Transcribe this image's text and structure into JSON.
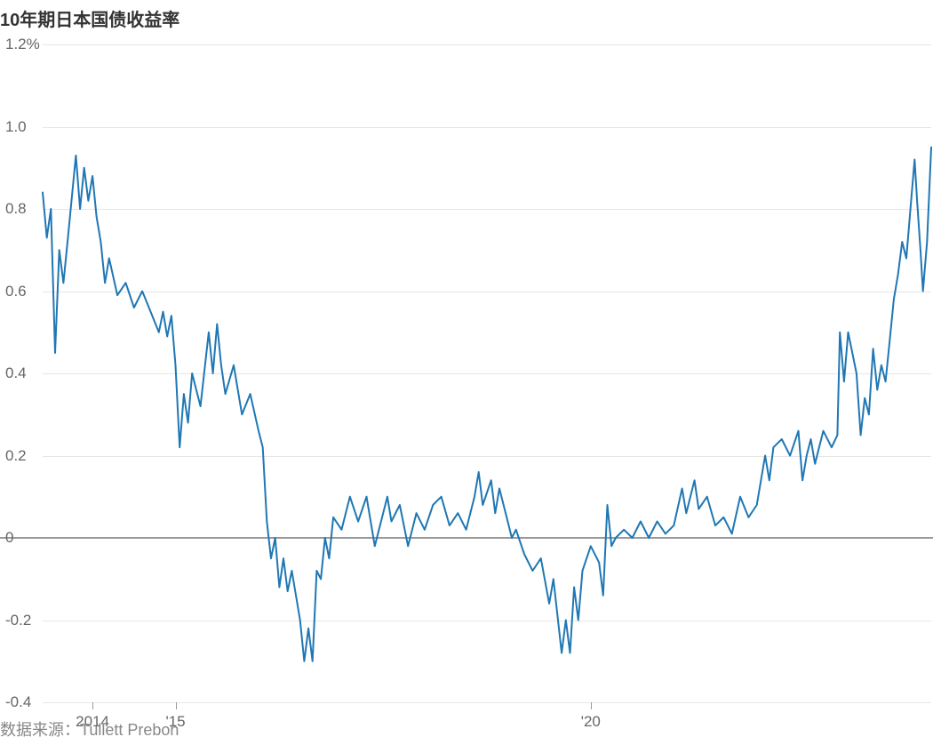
{
  "title": "10年期日本国债收益率",
  "source": "数据来源：Tullett Prebon",
  "chart": {
    "type": "line",
    "line_color": "#1f77b4",
    "line_width": 2,
    "background_color": "#ffffff",
    "grid_color": "#e6e6e6",
    "zero_line_color": "#999999",
    "title_fontsize": 20,
    "title_weight": 700,
    "label_fontsize": 17,
    "label_color": "#666666",
    "source_fontsize": 18,
    "source_color": "#888888",
    "y": {
      "min": -0.4,
      "max": 1.2,
      "ticks": [
        -0.4,
        -0.2,
        0,
        0.2,
        0.4,
        0.6,
        0.8,
        1.0,
        1.2
      ],
      "tick_labels": [
        "-0.4",
        "-0.2",
        "0",
        "0.2",
        "0.4",
        "0.6",
        "0.8",
        "1.0",
        "1.2%"
      ]
    },
    "x": {
      "min": 2013.4,
      "max": 2024.1,
      "ticks": [
        2014,
        2015,
        2020
      ],
      "tick_labels": [
        "2014",
        "'15",
        "'20"
      ]
    },
    "series": [
      {
        "x": 2013.4,
        "y": 0.84
      },
      {
        "x": 2013.45,
        "y": 0.73
      },
      {
        "x": 2013.5,
        "y": 0.8
      },
      {
        "x": 2013.55,
        "y": 0.45
      },
      {
        "x": 2013.6,
        "y": 0.7
      },
      {
        "x": 2013.65,
        "y": 0.62
      },
      {
        "x": 2013.7,
        "y": 0.72
      },
      {
        "x": 2013.8,
        "y": 0.93
      },
      {
        "x": 2013.85,
        "y": 0.8
      },
      {
        "x": 2013.9,
        "y": 0.9
      },
      {
        "x": 2013.95,
        "y": 0.82
      },
      {
        "x": 2014.0,
        "y": 0.88
      },
      {
        "x": 2014.05,
        "y": 0.78
      },
      {
        "x": 2014.1,
        "y": 0.72
      },
      {
        "x": 2014.15,
        "y": 0.62
      },
      {
        "x": 2014.2,
        "y": 0.68
      },
      {
        "x": 2014.3,
        "y": 0.59
      },
      {
        "x": 2014.4,
        "y": 0.62
      },
      {
        "x": 2014.5,
        "y": 0.56
      },
      {
        "x": 2014.6,
        "y": 0.6
      },
      {
        "x": 2014.7,
        "y": 0.55
      },
      {
        "x": 2014.8,
        "y": 0.5
      },
      {
        "x": 2014.85,
        "y": 0.55
      },
      {
        "x": 2014.9,
        "y": 0.49
      },
      {
        "x": 2014.95,
        "y": 0.54
      },
      {
        "x": 2015.0,
        "y": 0.42
      },
      {
        "x": 2015.05,
        "y": 0.22
      },
      {
        "x": 2015.1,
        "y": 0.35
      },
      {
        "x": 2015.15,
        "y": 0.28
      },
      {
        "x": 2015.2,
        "y": 0.4
      },
      {
        "x": 2015.3,
        "y": 0.32
      },
      {
        "x": 2015.4,
        "y": 0.5
      },
      {
        "x": 2015.45,
        "y": 0.4
      },
      {
        "x": 2015.5,
        "y": 0.52
      },
      {
        "x": 2015.55,
        "y": 0.42
      },
      {
        "x": 2015.6,
        "y": 0.35
      },
      {
        "x": 2015.7,
        "y": 0.42
      },
      {
        "x": 2015.8,
        "y": 0.3
      },
      {
        "x": 2015.9,
        "y": 0.35
      },
      {
        "x": 2016.0,
        "y": 0.26
      },
      {
        "x": 2016.05,
        "y": 0.22
      },
      {
        "x": 2016.1,
        "y": 0.04
      },
      {
        "x": 2016.15,
        "y": -0.05
      },
      {
        "x": 2016.2,
        "y": 0.0
      },
      {
        "x": 2016.25,
        "y": -0.12
      },
      {
        "x": 2016.3,
        "y": -0.05
      },
      {
        "x": 2016.35,
        "y": -0.13
      },
      {
        "x": 2016.4,
        "y": -0.08
      },
      {
        "x": 2016.5,
        "y": -0.2
      },
      {
        "x": 2016.55,
        "y": -0.3
      },
      {
        "x": 2016.6,
        "y": -0.22
      },
      {
        "x": 2016.65,
        "y": -0.3
      },
      {
        "x": 2016.7,
        "y": -0.08
      },
      {
        "x": 2016.75,
        "y": -0.1
      },
      {
        "x": 2016.8,
        "y": 0.0
      },
      {
        "x": 2016.85,
        "y": -0.05
      },
      {
        "x": 2016.9,
        "y": 0.05
      },
      {
        "x": 2017.0,
        "y": 0.02
      },
      {
        "x": 2017.1,
        "y": 0.1
      },
      {
        "x": 2017.2,
        "y": 0.04
      },
      {
        "x": 2017.3,
        "y": 0.1
      },
      {
        "x": 2017.4,
        "y": -0.02
      },
      {
        "x": 2017.5,
        "y": 0.06
      },
      {
        "x": 2017.55,
        "y": 0.1
      },
      {
        "x": 2017.6,
        "y": 0.04
      },
      {
        "x": 2017.7,
        "y": 0.08
      },
      {
        "x": 2017.8,
        "y": -0.02
      },
      {
        "x": 2017.9,
        "y": 0.06
      },
      {
        "x": 2018.0,
        "y": 0.02
      },
      {
        "x": 2018.1,
        "y": 0.08
      },
      {
        "x": 2018.2,
        "y": 0.1
      },
      {
        "x": 2018.3,
        "y": 0.03
      },
      {
        "x": 2018.4,
        "y": 0.06
      },
      {
        "x": 2018.5,
        "y": 0.02
      },
      {
        "x": 2018.6,
        "y": 0.1
      },
      {
        "x": 2018.65,
        "y": 0.16
      },
      {
        "x": 2018.7,
        "y": 0.08
      },
      {
        "x": 2018.8,
        "y": 0.14
      },
      {
        "x": 2018.85,
        "y": 0.06
      },
      {
        "x": 2018.9,
        "y": 0.12
      },
      {
        "x": 2019.0,
        "y": 0.04
      },
      {
        "x": 2019.05,
        "y": 0.0
      },
      {
        "x": 2019.1,
        "y": 0.02
      },
      {
        "x": 2019.2,
        "y": -0.04
      },
      {
        "x": 2019.3,
        "y": -0.08
      },
      {
        "x": 2019.4,
        "y": -0.05
      },
      {
        "x": 2019.5,
        "y": -0.16
      },
      {
        "x": 2019.55,
        "y": -0.1
      },
      {
        "x": 2019.65,
        "y": -0.28
      },
      {
        "x": 2019.7,
        "y": -0.2
      },
      {
        "x": 2019.75,
        "y": -0.28
      },
      {
        "x": 2019.8,
        "y": -0.12
      },
      {
        "x": 2019.85,
        "y": -0.2
      },
      {
        "x": 2019.9,
        "y": -0.08
      },
      {
        "x": 2020.0,
        "y": -0.02
      },
      {
        "x": 2020.1,
        "y": -0.06
      },
      {
        "x": 2020.15,
        "y": -0.14
      },
      {
        "x": 2020.2,
        "y": 0.08
      },
      {
        "x": 2020.25,
        "y": -0.02
      },
      {
        "x": 2020.3,
        "y": 0.0
      },
      {
        "x": 2020.4,
        "y": 0.02
      },
      {
        "x": 2020.5,
        "y": 0.0
      },
      {
        "x": 2020.6,
        "y": 0.04
      },
      {
        "x": 2020.7,
        "y": 0.0
      },
      {
        "x": 2020.8,
        "y": 0.04
      },
      {
        "x": 2020.9,
        "y": 0.01
      },
      {
        "x": 2021.0,
        "y": 0.03
      },
      {
        "x": 2021.1,
        "y": 0.12
      },
      {
        "x": 2021.15,
        "y": 0.06
      },
      {
        "x": 2021.25,
        "y": 0.14
      },
      {
        "x": 2021.3,
        "y": 0.07
      },
      {
        "x": 2021.4,
        "y": 0.1
      },
      {
        "x": 2021.5,
        "y": 0.03
      },
      {
        "x": 2021.6,
        "y": 0.05
      },
      {
        "x": 2021.7,
        "y": 0.01
      },
      {
        "x": 2021.8,
        "y": 0.1
      },
      {
        "x": 2021.9,
        "y": 0.05
      },
      {
        "x": 2022.0,
        "y": 0.08
      },
      {
        "x": 2022.1,
        "y": 0.2
      },
      {
        "x": 2022.15,
        "y": 0.14
      },
      {
        "x": 2022.2,
        "y": 0.22
      },
      {
        "x": 2022.3,
        "y": 0.24
      },
      {
        "x": 2022.4,
        "y": 0.2
      },
      {
        "x": 2022.5,
        "y": 0.26
      },
      {
        "x": 2022.55,
        "y": 0.14
      },
      {
        "x": 2022.6,
        "y": 0.2
      },
      {
        "x": 2022.65,
        "y": 0.24
      },
      {
        "x": 2022.7,
        "y": 0.18
      },
      {
        "x": 2022.8,
        "y": 0.26
      },
      {
        "x": 2022.9,
        "y": 0.22
      },
      {
        "x": 2022.97,
        "y": 0.25
      },
      {
        "x": 2023.0,
        "y": 0.5
      },
      {
        "x": 2023.05,
        "y": 0.38
      },
      {
        "x": 2023.1,
        "y": 0.5
      },
      {
        "x": 2023.2,
        "y": 0.4
      },
      {
        "x": 2023.25,
        "y": 0.25
      },
      {
        "x": 2023.3,
        "y": 0.34
      },
      {
        "x": 2023.35,
        "y": 0.3
      },
      {
        "x": 2023.4,
        "y": 0.46
      },
      {
        "x": 2023.45,
        "y": 0.36
      },
      {
        "x": 2023.5,
        "y": 0.42
      },
      {
        "x": 2023.55,
        "y": 0.38
      },
      {
        "x": 2023.6,
        "y": 0.48
      },
      {
        "x": 2023.65,
        "y": 0.58
      },
      {
        "x": 2023.7,
        "y": 0.64
      },
      {
        "x": 2023.75,
        "y": 0.72
      },
      {
        "x": 2023.8,
        "y": 0.68
      },
      {
        "x": 2023.85,
        "y": 0.8
      },
      {
        "x": 2023.9,
        "y": 0.92
      },
      {
        "x": 2023.93,
        "y": 0.82
      },
      {
        "x": 2023.97,
        "y": 0.7
      },
      {
        "x": 2024.0,
        "y": 0.6
      },
      {
        "x": 2024.05,
        "y": 0.72
      },
      {
        "x": 2024.1,
        "y": 0.95
      }
    ]
  }
}
